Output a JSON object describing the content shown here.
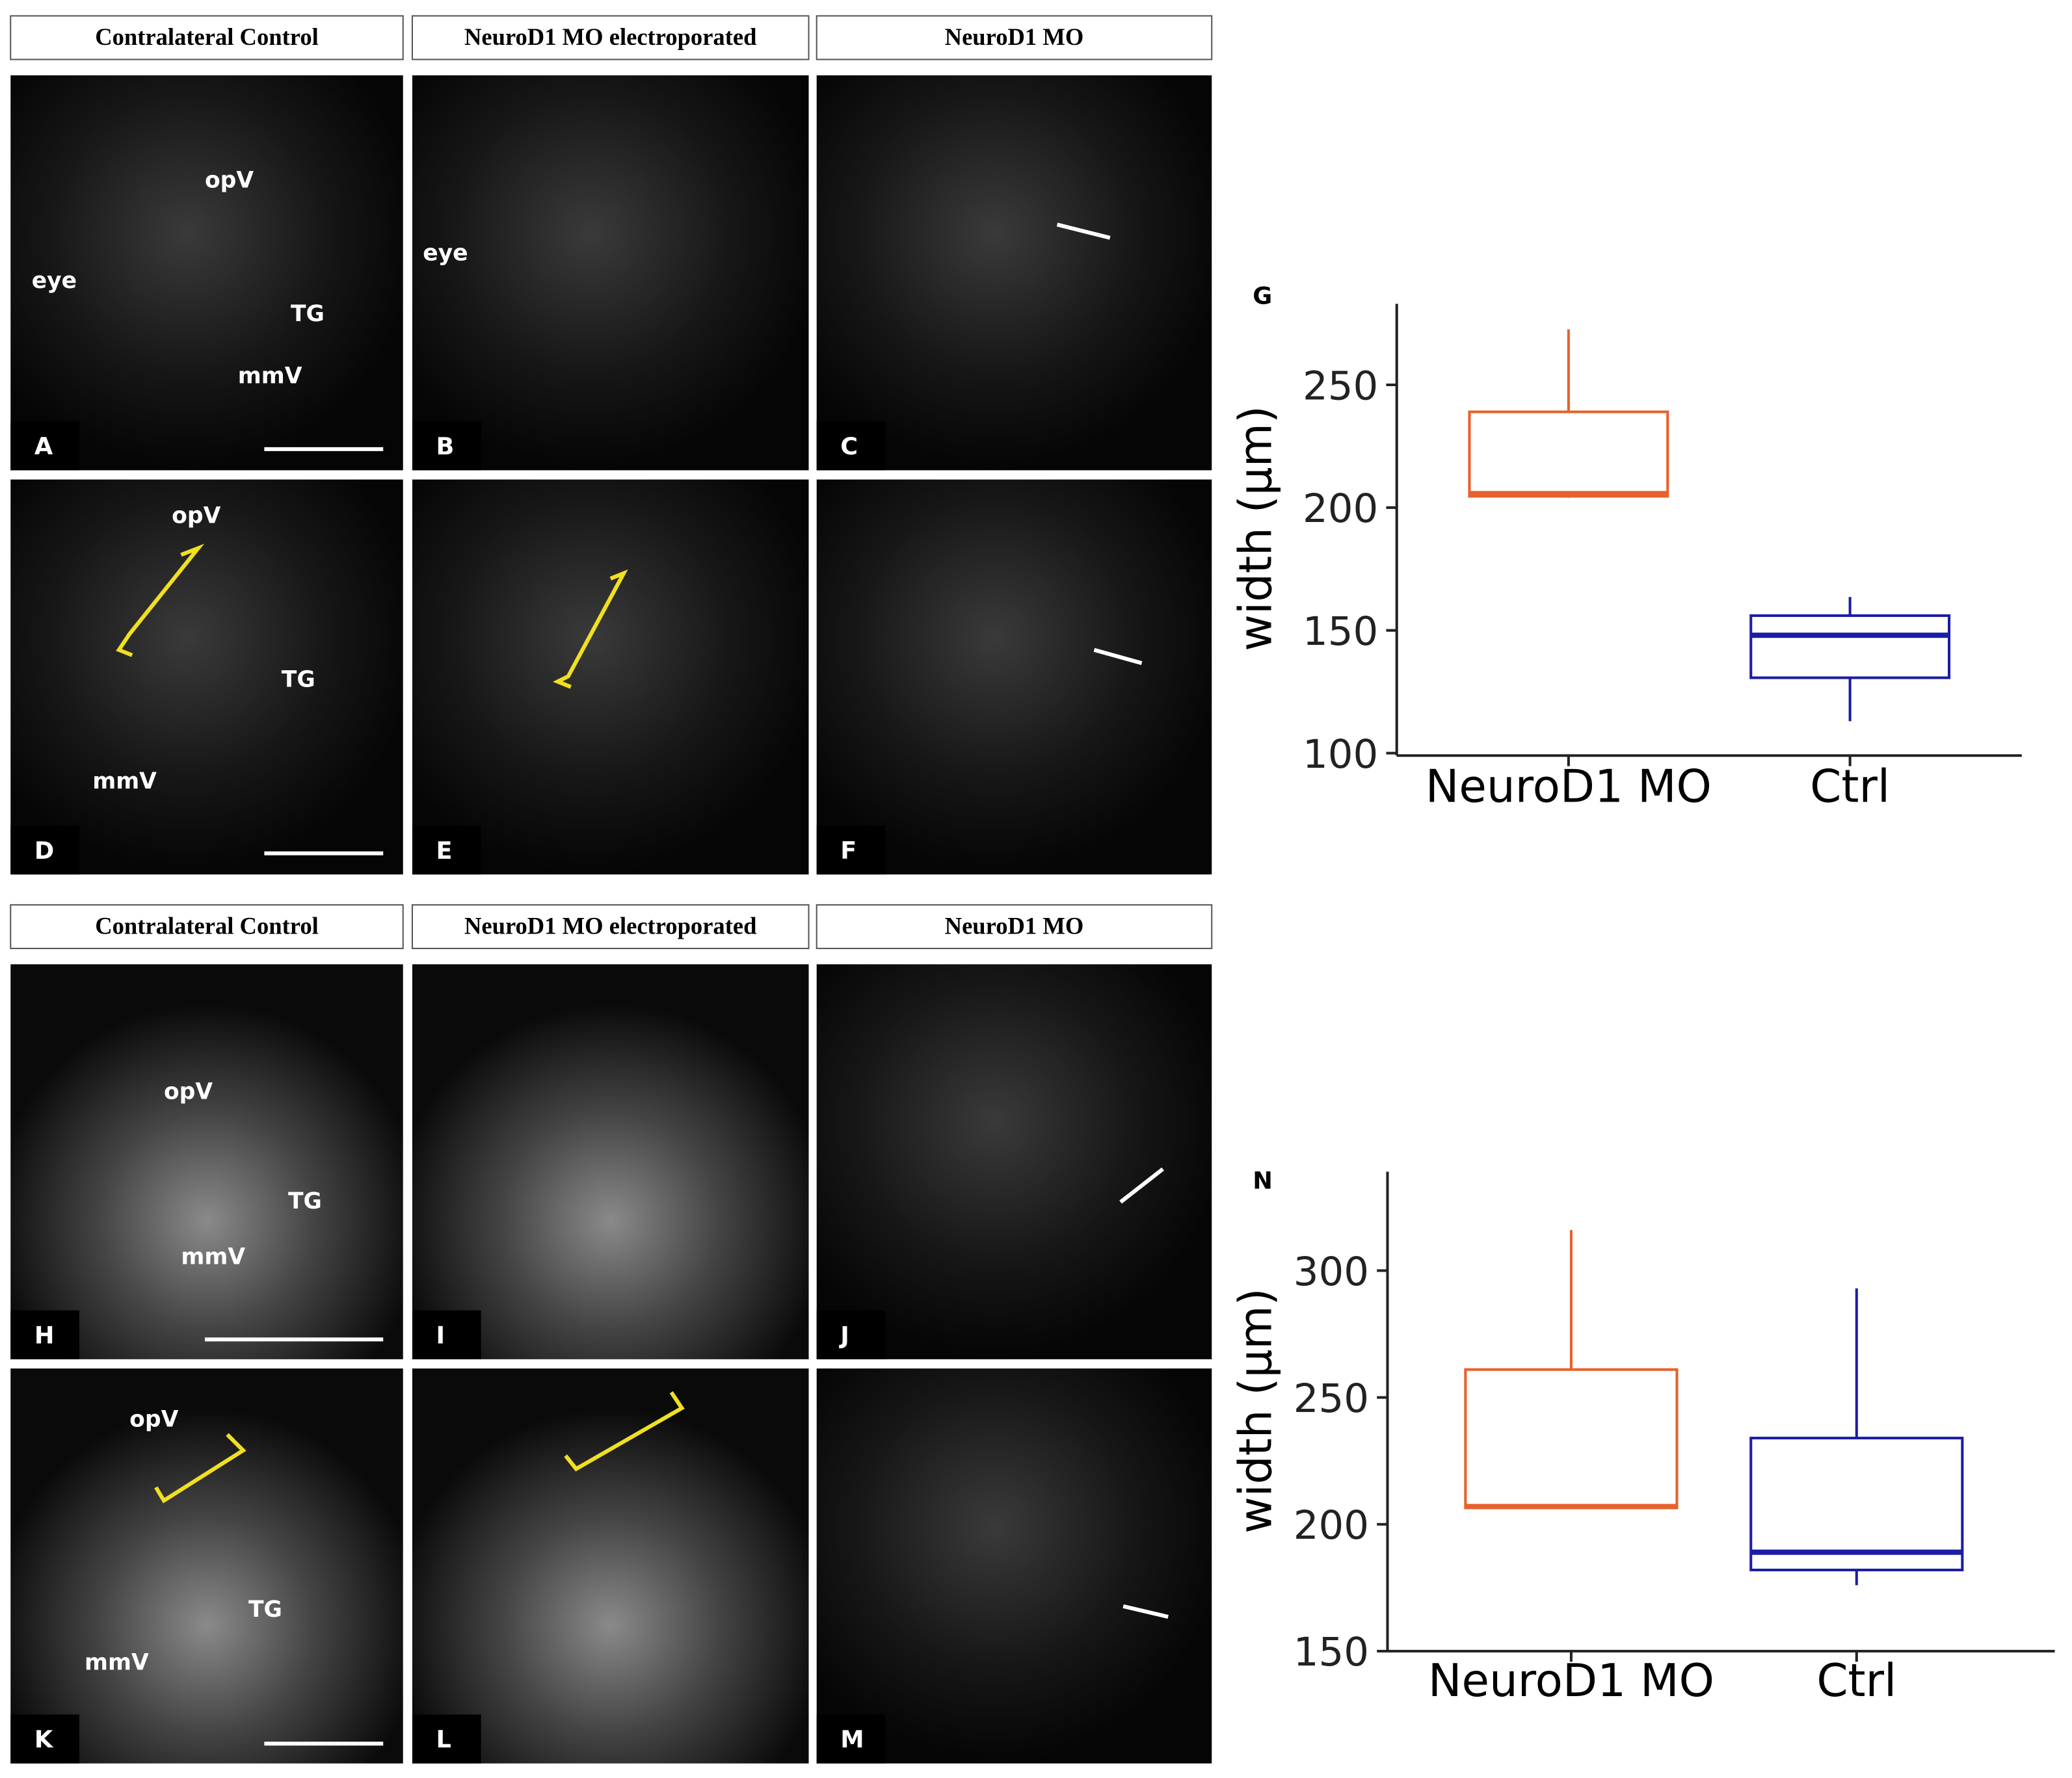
{
  "figure": {
    "sections": [
      {
        "headers": [
          "Contralateral Control",
          "NeuroD1 MO electroporated",
          "NeuroD1 MO"
        ],
        "panels": [
          {
            "label": "A",
            "texts": [
              "opV",
              "eye",
              "TG",
              "mmV"
            ]
          },
          {
            "label": "B",
            "texts": [
              "eye"
            ]
          },
          {
            "label": "C",
            "texts": []
          },
          {
            "label": "D",
            "texts": [
              "opV",
              "TG",
              "mmV"
            ]
          },
          {
            "label": "E",
            "texts": []
          },
          {
            "label": "F",
            "texts": []
          }
        ]
      },
      {
        "headers": [
          "Contralateral Control",
          "NeuroD1 MO electroporated",
          "NeuroD1 MO"
        ],
        "panels": [
          {
            "label": "H",
            "texts": [
              "opV",
              "TG",
              "mmV"
            ]
          },
          {
            "label": "I",
            "texts": []
          },
          {
            "label": "J",
            "texts": []
          },
          {
            "label": "K",
            "texts": [
              "opV",
              "TG",
              "mmV"
            ]
          },
          {
            "label": "L",
            "texts": []
          },
          {
            "label": "M",
            "texts": []
          }
        ]
      }
    ]
  },
  "chart_data": [
    {
      "type": "box",
      "label": "G",
      "ylabel": "width (μm)",
      "categories": [
        "NeuroD1 MO",
        "Ctrl"
      ],
      "colors": [
        "#e8602c",
        "#1c1ca6"
      ],
      "boxes": [
        {
          "min": 204,
          "q1": 204.6,
          "median": 205.7,
          "q3": 239,
          "max": 272.6
        },
        {
          "min": 113,
          "q1": 130.7,
          "median": 148,
          "q3": 156,
          "max": 163.6
        }
      ],
      "ylim": [
        99,
        283
      ],
      "yticks": [
        100,
        150,
        200,
        250
      ]
    },
    {
      "type": "box",
      "label": "N",
      "ylabel": "width (μm)",
      "categories": [
        "NeuroD1 MO",
        "Ctrl"
      ],
      "colors": [
        "#e8602c",
        "#1c1ca6"
      ],
      "boxes": [
        {
          "min": 206,
          "q1": 206.5,
          "median": 207,
          "q3": 261,
          "max": 316
        },
        {
          "min": 176,
          "q1": 182,
          "median": 189,
          "q3": 234,
          "max": 293
        }
      ],
      "ylim": [
        150,
        339
      ],
      "yticks": [
        150,
        200,
        250,
        300
      ]
    }
  ]
}
